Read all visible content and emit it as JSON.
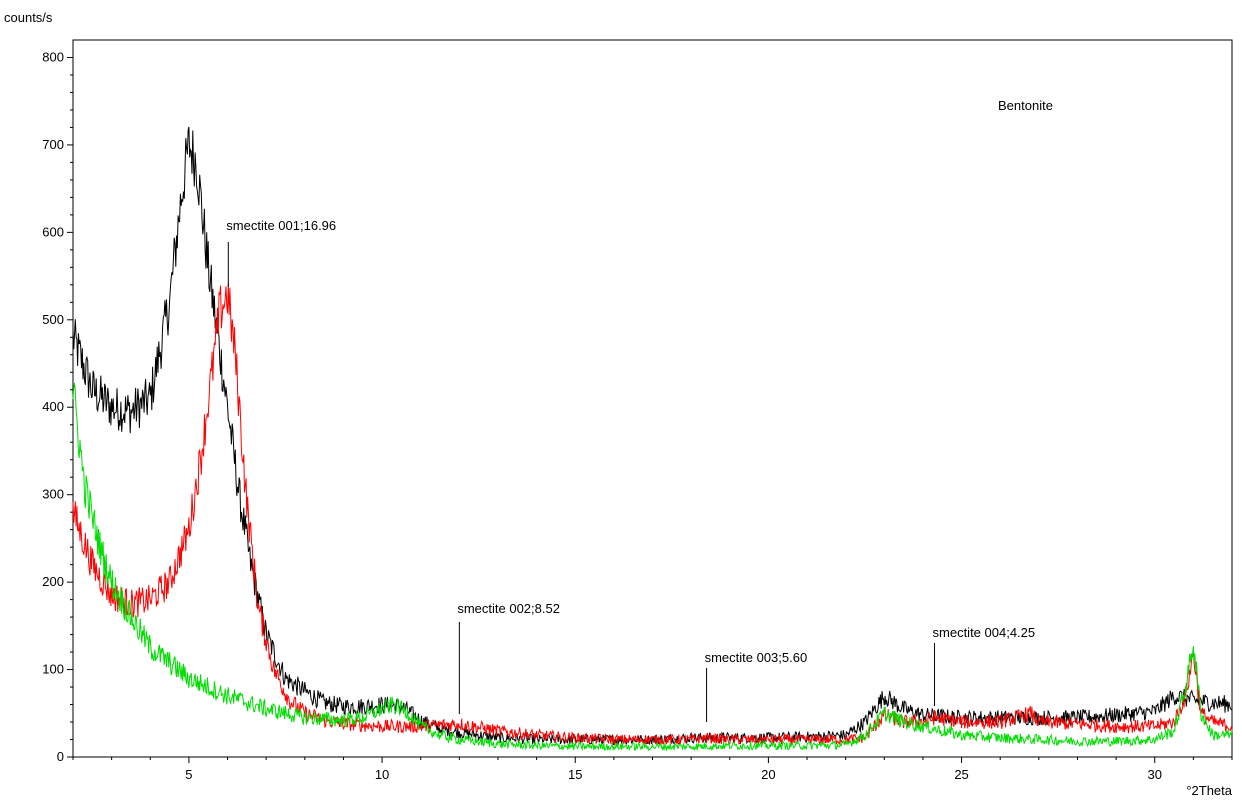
{
  "chart_data": {
    "type": "line",
    "title": "",
    "ylabel": "counts/s",
    "xlabel": "°2Theta",
    "xlim": [
      2,
      32
    ],
    "ylim": [
      0,
      820
    ],
    "x_ticks": [
      5,
      10,
      15,
      20,
      25,
      30
    ],
    "y_ticks": [
      0,
      100,
      200,
      300,
      400,
      500,
      600,
      700,
      800
    ],
    "grid": false,
    "sample_label": "Bentonite",
    "series": [
      {
        "color": "#000000",
        "x": [
          2,
          2.5,
          3,
          3.5,
          4,
          4.5,
          4.8,
          5,
          5.2,
          5.5,
          6,
          6.3,
          6.6,
          7,
          7.5,
          8,
          8.5,
          9,
          9.5,
          10,
          10.5,
          11,
          11.5,
          12,
          13,
          14,
          15,
          16,
          17,
          18,
          19,
          20,
          21,
          22,
          22.5,
          23,
          23.5,
          24,
          25,
          26,
          27,
          28,
          29,
          30,
          30.5,
          31,
          31.5,
          32
        ],
        "y": [
          480,
          420,
          400,
          395,
          410,
          520,
          640,
          700,
          680,
          560,
          400,
          300,
          220,
          140,
          90,
          75,
          62,
          58,
          58,
          60,
          58,
          42,
          32,
          28,
          22,
          20,
          20,
          20,
          20,
          22,
          22,
          22,
          23,
          25,
          40,
          70,
          55,
          48,
          45,
          45,
          45,
          45,
          48,
          52,
          70,
          65,
          62,
          60
        ]
      },
      {
        "color": "#ff0000",
        "x": [
          2,
          2.5,
          3,
          3.5,
          4,
          4.5,
          5,
          5.3,
          5.6,
          5.8,
          6,
          6.2,
          6.5,
          6.8,
          7.2,
          7.6,
          8,
          8.5,
          9,
          10,
          11,
          12,
          13,
          14,
          15,
          16,
          17,
          18,
          18.4,
          19,
          20,
          21,
          22,
          22.5,
          23,
          23.5,
          24,
          24.3,
          25,
          26,
          26.8,
          27,
          28,
          29,
          30,
          30.5,
          30.8,
          31,
          31.2,
          31.5,
          32
        ],
        "y": [
          280,
          220,
          185,
          175,
          180,
          200,
          260,
          340,
          440,
          510,
          530,
          460,
          290,
          170,
          100,
          65,
          50,
          42,
          38,
          35,
          35,
          38,
          30,
          25,
          22,
          20,
          20,
          20,
          22,
          20,
          20,
          20,
          20,
          22,
          48,
          40,
          40,
          45,
          40,
          40,
          50,
          40,
          38,
          35,
          35,
          40,
          70,
          120,
          50,
          40,
          35
        ]
      },
      {
        "color": "#00dd00",
        "x": [
          2,
          2.3,
          2.7,
          3,
          3.5,
          4,
          5,
          6,
          7,
          8,
          9,
          9.5,
          10,
          10.3,
          10.7,
          11,
          11.5,
          12,
          13,
          14,
          15,
          16,
          17,
          18,
          19,
          20,
          21,
          22,
          22.5,
          23,
          23.5,
          24,
          25,
          26,
          27,
          28,
          29,
          30,
          30.5,
          30.8,
          31,
          31.2,
          31.5,
          32
        ],
        "y": [
          420,
          310,
          240,
          200,
          160,
          125,
          90,
          70,
          55,
          45,
          42,
          45,
          55,
          60,
          50,
          35,
          25,
          20,
          15,
          13,
          12,
          12,
          12,
          12,
          13,
          13,
          13,
          14,
          25,
          50,
          40,
          35,
          25,
          22,
          20,
          18,
          18,
          20,
          30,
          80,
          130,
          50,
          25,
          25
        ]
      }
    ],
    "annotations": [
      {
        "text": "smectite 001;16.96",
        "x": 6.02
      },
      {
        "text": "smectite 002;8.52",
        "x": 12.0
      },
      {
        "text": "smectite 003;5.60",
        "x": 18.4
      },
      {
        "text": "smectite 004;4.25",
        "x": 24.3
      }
    ]
  }
}
